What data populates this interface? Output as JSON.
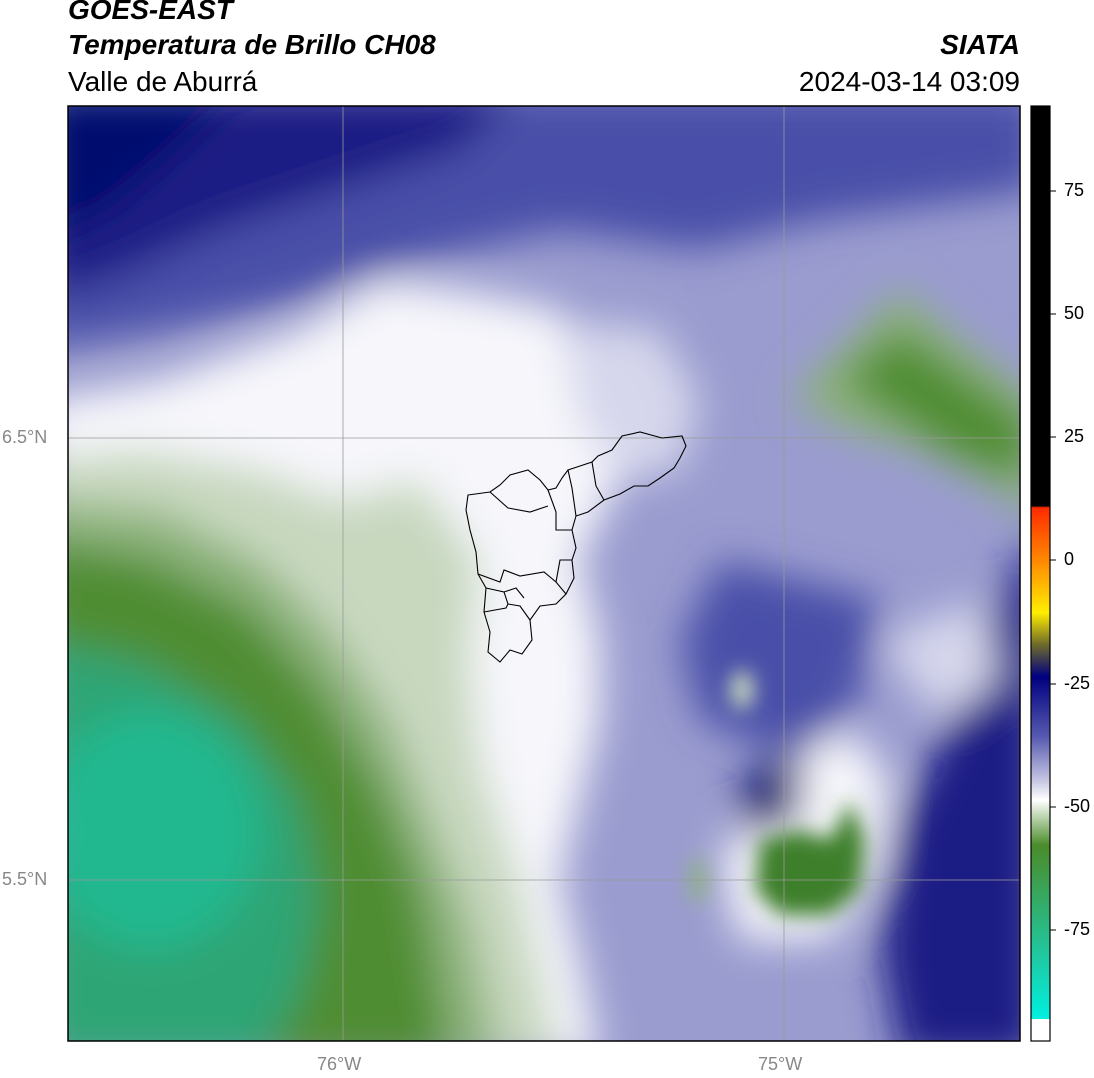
{
  "header": {
    "satellite": "GOES-EAST",
    "product": "Temperatura de Brillo CH08",
    "region": "Valle de Aburrá",
    "agency": "SIATA",
    "datetime": "2024-03-14 03:09"
  },
  "axes": {
    "lat_labels": [
      "6.5°N",
      "5.5°N"
    ],
    "lon_labels": [
      "76°W",
      "75°W"
    ]
  },
  "colorbar": {
    "ticks": [
      "75",
      "50",
      "25",
      "0",
      "-25",
      "-50",
      "-75"
    ],
    "colors": {
      "warm_black": "#000000",
      "red": "#ff2a00",
      "orange": "#ff8c00",
      "yellow": "#ffee00",
      "olive": "#6e6a2a",
      "navy": "#000080",
      "blue_purple": "#5558b0",
      "lavender": "#c9c9e4",
      "white": "#ffffff",
      "green": "#4a8c2a",
      "teal": "#20c8a0",
      "cyan": "#00f0e0"
    }
  },
  "map_colors": {
    "navy": "#000c6e",
    "deep_blue": "#1a1f85",
    "blue_purple": "#4a4fa8",
    "lavender": "#9a9ccf",
    "pale_lavender": "#d6d7ec",
    "white": "#f6f6fb",
    "pale_green": "#c8d8bf",
    "light_green": "#8cb27a",
    "green": "#4f8d33",
    "dark_green": "#3d7f2a",
    "teal_green": "#2ea574",
    "teal": "#23b88f",
    "outline": "#000000",
    "grid": "#9a9a9a"
  }
}
